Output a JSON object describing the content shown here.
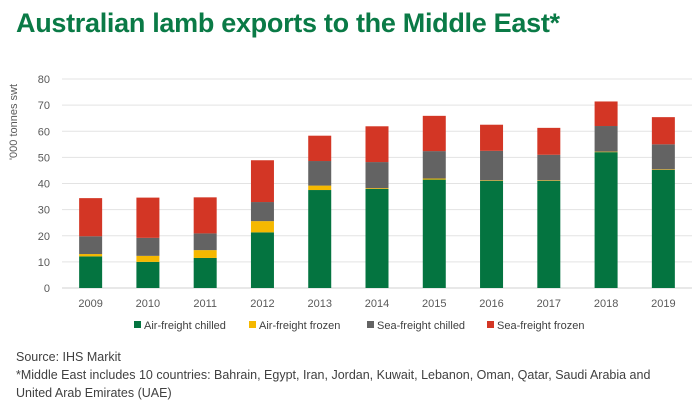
{
  "title": "Australian lamb exports to the Middle East*",
  "source": "Source: IHS Markit",
  "footnote_line1": "*Middle East includes 10 countries: Bahrain, Egypt, Iran, Jordan, Kuwait, Lebanon, Oman, Qatar, Saudi Arabia and",
  "footnote_line2": "United Arab Emirates (UAE)",
  "chart_data": {
    "type": "bar",
    "stacked": true,
    "title": "Australian lamb exports to the Middle East*",
    "xlabel": "",
    "ylabel": "'000 tonnes swt",
    "ylim": [
      0,
      80
    ],
    "yticks": [
      0,
      10,
      20,
      30,
      40,
      50,
      60,
      70,
      80
    ],
    "grid": true,
    "legend_position": "bottom",
    "categories": [
      "2009",
      "2010",
      "2011",
      "2012",
      "2013",
      "2014",
      "2015",
      "2016",
      "2017",
      "2018",
      "2019"
    ],
    "series": [
      {
        "name": "Air-freight chilled",
        "color": "#047440",
        "values": [
          12.1,
          10.0,
          11.5,
          21.3,
          37.5,
          37.9,
          41.5,
          41.0,
          41.0,
          52.0,
          45.2
        ]
      },
      {
        "name": "Air-freight frozen",
        "color": "#f5b800",
        "values": [
          0.9,
          2.3,
          3.0,
          4.3,
          1.7,
          0.3,
          0.4,
          0.2,
          0.2,
          0.2,
          0.2
        ]
      },
      {
        "name": "Sea-freight chilled",
        "color": "#636363",
        "values": [
          6.8,
          6.9,
          6.4,
          7.3,
          9.4,
          10.0,
          10.5,
          11.3,
          9.8,
          9.8,
          9.6
        ]
      },
      {
        "name": "Sea-freight frozen",
        "color": "#d33625",
        "values": [
          14.6,
          15.4,
          13.8,
          16.0,
          9.7,
          13.7,
          13.5,
          10.0,
          10.3,
          9.4,
          10.4
        ]
      }
    ]
  }
}
